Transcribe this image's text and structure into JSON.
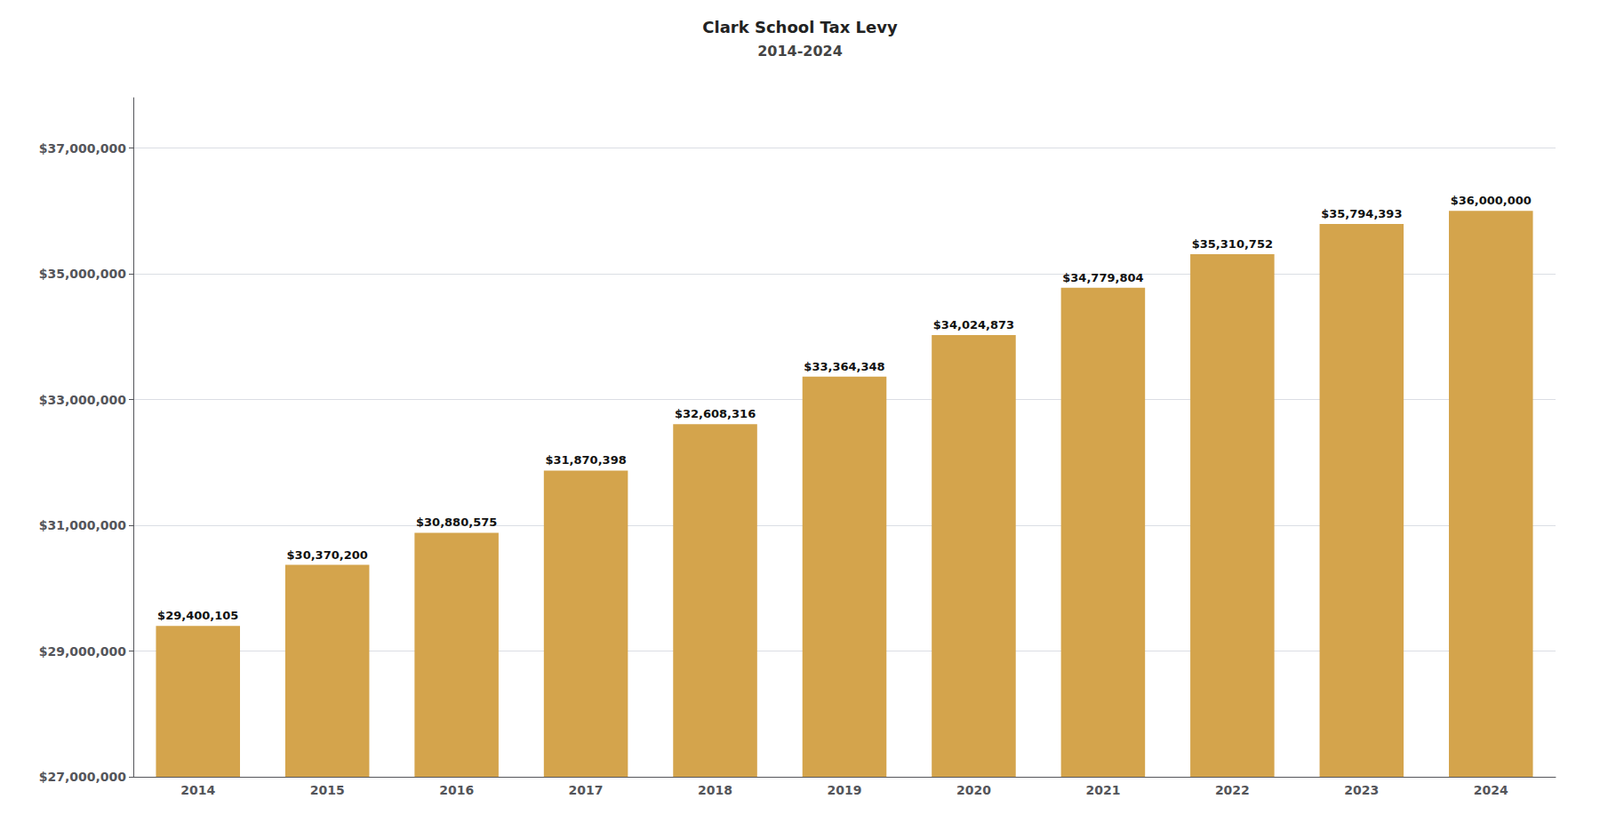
{
  "chart_data": {
    "type": "bar",
    "title": "Clark School Tax Levy",
    "subtitle": "2014-2024",
    "categories": [
      "2014",
      "2015",
      "2016",
      "2017",
      "2018",
      "2019",
      "2020",
      "2021",
      "2022",
      "2023",
      "2024"
    ],
    "values": [
      29400105,
      30370200,
      30880575,
      31870398,
      32608316,
      33364348,
      34024873,
      34779804,
      35310752,
      35794393,
      36000000
    ],
    "value_labels": [
      "$29,400,105",
      "$30,370,200",
      "$30,880,575",
      "$31,870,398",
      "$32,608,316",
      "$33,364,348",
      "$34,024,873",
      "$34,779,804",
      "$35,310,752",
      "$35,794,393",
      "$36,000,000"
    ],
    "data_labels": true,
    "color": "#D4A44C",
    "ylim": [
      27000000,
      37800000
    ],
    "yticks": [
      {
        "value": 27000000,
        "label": "$27,000,000"
      },
      {
        "value": 29000000,
        "label": "$29,000,000"
      },
      {
        "value": 31000000,
        "label": "$31,000,000"
      },
      {
        "value": 33000000,
        "label": "$33,000,000"
      },
      {
        "value": 35000000,
        "label": "$35,000,000"
      },
      {
        "value": 37000000,
        "label": "$37,000,000"
      }
    ],
    "grid": true
  }
}
